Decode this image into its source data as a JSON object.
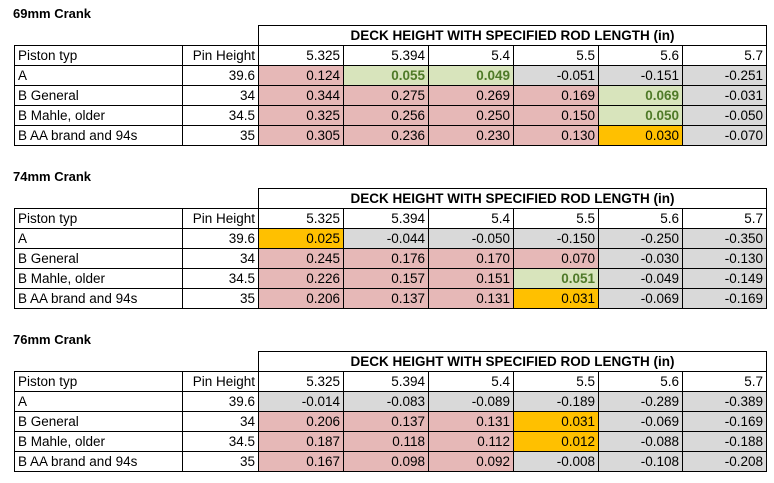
{
  "header_label": "DECK HEIGHT WITH SPECIFIED ROD LENGTH (in)",
  "col_piston": "Piston typ",
  "col_pin": "Pin Height",
  "rod_lengths": [
    "5.325",
    "5.394",
    "5.4",
    "5.5",
    "5.6",
    "5.7"
  ],
  "colors": {
    "pink": "#e6b8b7",
    "green": "#d8e4bc",
    "orange": "#ffc000",
    "gray": "#d9d9d9"
  },
  "sections": [
    {
      "title": "69mm Crank",
      "rows": [
        {
          "piston": "A",
          "pin": "39.6",
          "values": [
            "0.124",
            "0.055",
            "0.049",
            "-0.051",
            "-0.151",
            "-0.251"
          ],
          "colors": [
            "pink",
            "green",
            "green",
            "gray",
            "gray",
            "gray"
          ]
        },
        {
          "piston": "B General",
          "pin": "34",
          "values": [
            "0.344",
            "0.275",
            "0.269",
            "0.169",
            "0.069",
            "-0.031"
          ],
          "colors": [
            "pink",
            "pink",
            "pink",
            "pink",
            "green",
            "gray"
          ]
        },
        {
          "piston": "B Mahle, older",
          "pin": "34.5",
          "values": [
            "0.325",
            "0.256",
            "0.250",
            "0.150",
            "0.050",
            "-0.050"
          ],
          "colors": [
            "pink",
            "pink",
            "pink",
            "pink",
            "green",
            "gray"
          ]
        },
        {
          "piston": "B AA brand and 94s",
          "pin": "35",
          "values": [
            "0.305",
            "0.236",
            "0.230",
            "0.130",
            "0.030",
            "-0.070"
          ],
          "colors": [
            "pink",
            "pink",
            "pink",
            "pink",
            "orange",
            "gray"
          ]
        }
      ]
    },
    {
      "title": "74mm Crank",
      "rows": [
        {
          "piston": "A",
          "pin": "39.6",
          "values": [
            "0.025",
            "-0.044",
            "-0.050",
            "-0.150",
            "-0.250",
            "-0.350"
          ],
          "colors": [
            "orange",
            "gray",
            "gray",
            "gray",
            "gray",
            "gray"
          ]
        },
        {
          "piston": "B General",
          "pin": "34",
          "values": [
            "0.245",
            "0.176",
            "0.170",
            "0.070",
            "-0.030",
            "-0.130"
          ],
          "colors": [
            "pink",
            "pink",
            "pink",
            "pink",
            "gray",
            "gray"
          ]
        },
        {
          "piston": "B Mahle, older",
          "pin": "34.5",
          "values": [
            "0.226",
            "0.157",
            "0.151",
            "0.051",
            "-0.049",
            "-0.149"
          ],
          "colors": [
            "pink",
            "pink",
            "pink",
            "green",
            "gray",
            "gray"
          ]
        },
        {
          "piston": "B AA brand and 94s",
          "pin": "35",
          "values": [
            "0.206",
            "0.137",
            "0.131",
            "0.031",
            "-0.069",
            "-0.169"
          ],
          "colors": [
            "pink",
            "pink",
            "pink",
            "orange",
            "gray",
            "gray"
          ]
        }
      ]
    },
    {
      "title": "76mm Crank",
      "rows": [
        {
          "piston": "A",
          "pin": "39.6",
          "values": [
            "-0.014",
            "-0.083",
            "-0.089",
            "-0.189",
            "-0.289",
            "-0.389"
          ],
          "colors": [
            "gray",
            "gray",
            "gray",
            "gray",
            "gray",
            "gray"
          ]
        },
        {
          "piston": "B General",
          "pin": "34",
          "values": [
            "0.206",
            "0.137",
            "0.131",
            "0.031",
            "-0.069",
            "-0.169"
          ],
          "colors": [
            "pink",
            "pink",
            "pink",
            "orange",
            "gray",
            "gray"
          ]
        },
        {
          "piston": "B Mahle, older",
          "pin": "34.5",
          "values": [
            "0.187",
            "0.118",
            "0.112",
            "0.012",
            "-0.088",
            "-0.188"
          ],
          "colors": [
            "pink",
            "pink",
            "pink",
            "orange",
            "gray",
            "gray"
          ]
        },
        {
          "piston": "B AA brand and 94s",
          "pin": "35",
          "values": [
            "0.167",
            "0.098",
            "0.092",
            "-0.008",
            "-0.108",
            "-0.208"
          ],
          "colors": [
            "pink",
            "pink",
            "pink",
            "gray",
            "gray",
            "gray"
          ]
        }
      ]
    }
  ]
}
